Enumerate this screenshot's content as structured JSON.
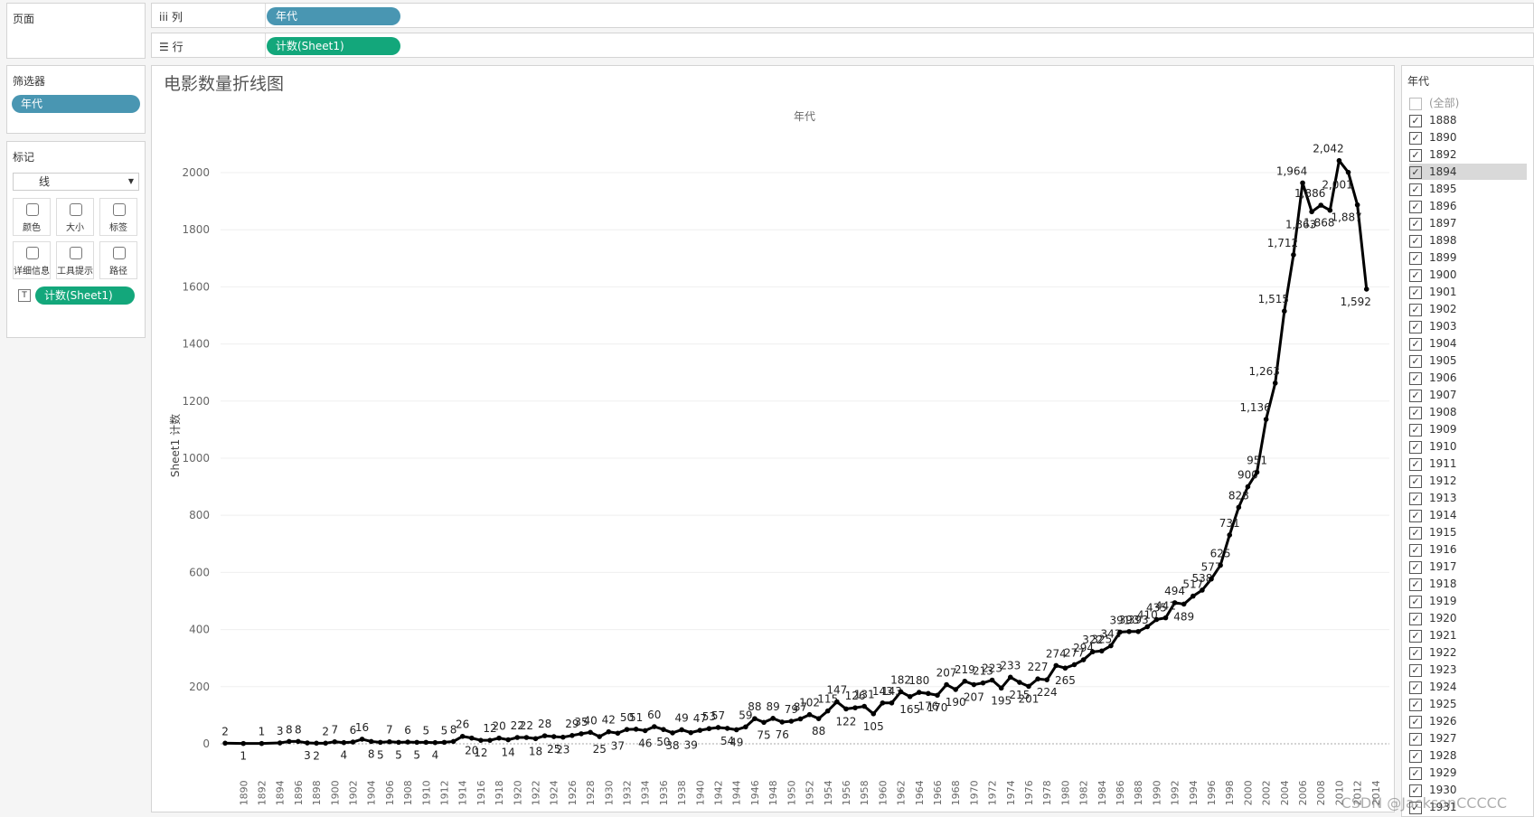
{
  "shelves": {
    "columns": {
      "label": "列",
      "pill": "年代"
    },
    "rows": {
      "label": "行",
      "pill": "计数(Sheet1)"
    }
  },
  "pages_panel": {
    "title": "页面"
  },
  "filters_panel": {
    "title": "筛选器",
    "pill": "年代"
  },
  "marks_panel": {
    "title": "标记",
    "mark_type": "线",
    "buttons": [
      "颜色",
      "大小",
      "标签",
      "详细信息",
      "工具提示",
      "路径"
    ],
    "pill": "计数(Sheet1)"
  },
  "filter_list": {
    "title": "年代",
    "all": "(全部)",
    "items": [
      "1888",
      "1890",
      "1892",
      "1894",
      "1895",
      "1896",
      "1897",
      "1898",
      "1899",
      "1900",
      "1901",
      "1902",
      "1903",
      "1904",
      "1905",
      "1906",
      "1907",
      "1908",
      "1909",
      "1910",
      "1911",
      "1912",
      "1913",
      "1914",
      "1915",
      "1916",
      "1917",
      "1918",
      "1919",
      "1920",
      "1921",
      "1922",
      "1923",
      "1924",
      "1925",
      "1926",
      "1927",
      "1928",
      "1929",
      "1930",
      "1931"
    ]
  },
  "watermark": "CSDN @JacksonCCCCC",
  "chart_data": {
    "type": "line",
    "title": "电影数量折线图",
    "x_header": "年代",
    "y_label": "Sheet1 计数",
    "color": "#000000",
    "grid": true,
    "x": [
      1888,
      1890,
      1892,
      1894,
      1895,
      1896,
      1897,
      1898,
      1899,
      1900,
      1901,
      1902,
      1903,
      1904,
      1905,
      1906,
      1907,
      1908,
      1909,
      1910,
      1911,
      1912,
      1913,
      1914,
      1915,
      1916,
      1917,
      1918,
      1919,
      1920,
      1921,
      1922,
      1923,
      1924,
      1925,
      1926,
      1927,
      1928,
      1929,
      1930,
      1931,
      1932,
      1933,
      1934,
      1935,
      1936,
      1937,
      1938,
      1939,
      1940,
      1941,
      1942,
      1943,
      1944,
      1945,
      1946,
      1947,
      1948,
      1949,
      1950,
      1951,
      1952,
      1953,
      1954,
      1955,
      1956,
      1957,
      1958,
      1959,
      1960,
      1961,
      1962,
      1963,
      1964,
      1965,
      1966,
      1967,
      1968,
      1969,
      1970,
      1971,
      1972,
      1973,
      1974,
      1975,
      1976,
      1977,
      1978,
      1979,
      1980,
      1981,
      1982,
      1983,
      1984,
      1985,
      1986,
      1987,
      1988,
      1989,
      1990,
      1991,
      1992,
      1993,
      1994,
      1995,
      1996,
      1997,
      1998,
      1999,
      2000,
      2001,
      2002,
      2003,
      2004,
      2005,
      2006,
      2007,
      2008,
      2009,
      2010,
      2011,
      2012,
      2013
    ],
    "values": [
      2,
      1,
      1,
      3,
      8,
      8,
      3,
      2,
      2,
      7,
      4,
      6,
      16,
      8,
      5,
      7,
      5,
      6,
      5,
      5,
      4,
      5,
      8,
      26,
      20,
      12,
      12,
      20,
      14,
      22,
      22,
      18,
      28,
      25,
      23,
      29,
      35,
      40,
      25,
      42,
      37,
      50,
      51,
      46,
      60,
      50,
      38,
      49,
      39,
      47,
      53,
      57,
      54,
      49,
      59,
      88,
      75,
      89,
      76,
      79,
      87,
      102,
      88,
      115,
      147,
      122,
      126,
      131,
      105,
      143,
      143,
      182,
      165,
      180,
      176,
      170,
      207,
      190,
      219,
      207,
      213,
      223,
      195,
      233,
      215,
      201,
      227,
      224,
      274,
      265,
      277,
      294,
      322,
      325,
      343,
      391,
      393,
      393,
      410,
      435,
      441,
      494,
      489,
      517,
      538,
      577,
      625,
      731,
      828,
      900,
      951,
      1136,
      1263,
      1515,
      1712,
      1964,
      1863,
      1886,
      1868,
      2042,
      2001,
      1887,
      1592
    ],
    "value_labels": [
      "2",
      "1",
      "1",
      "3",
      "8",
      "8",
      "3",
      "2",
      "2",
      "7",
      "4",
      "6",
      "16",
      "8",
      "5",
      "7",
      "5",
      "6",
      "5",
      "5",
      "4",
      "5",
      "8",
      "26",
      "20",
      "12",
      "12",
      "20",
      "14",
      "22",
      "22",
      "18",
      "28",
      "25",
      "23",
      "29",
      "35",
      "40",
      "25",
      "42",
      "37",
      "50",
      "51",
      "46",
      "60",
      "50",
      "38",
      "49",
      "39",
      "47",
      "53",
      "57",
      "54",
      "49",
      "59",
      "88",
      "75",
      "89",
      "76",
      "79",
      "87",
      "102",
      "88",
      "115",
      "147",
      "122",
      "126",
      "131",
      "105",
      "143",
      "143",
      "182",
      "165",
      "180",
      "176",
      "170",
      "207",
      "190",
      "219",
      "207",
      "213",
      "223",
      "195",
      "233",
      "215",
      "201",
      "227",
      "224",
      "274",
      "265",
      "277",
      "294",
      "322",
      "325",
      "343",
      "391",
      "393",
      "393",
      "410",
      "435",
      "441",
      "494",
      "489",
      "517",
      "538",
      "577",
      "625",
      "731",
      "828",
      "900",
      "951",
      "1,136",
      "1,263",
      "1,515",
      "1,712",
      "1,964",
      "1,863",
      "1,886",
      "1,868",
      "2,042",
      "2,001",
      "1,887",
      "1,592"
    ],
    "xlim": [
      1887.5,
      2015.5
    ],
    "xticks": [
      1890,
      1892,
      1894,
      1896,
      1898,
      1900,
      1902,
      1904,
      1906,
      1908,
      1910,
      1912,
      1914,
      1916,
      1918,
      1920,
      1922,
      1924,
      1926,
      1928,
      1930,
      1932,
      1934,
      1936,
      1938,
      1940,
      1942,
      1944,
      1946,
      1948,
      1950,
      1952,
      1954,
      1956,
      1958,
      1960,
      1962,
      1964,
      1966,
      1968,
      1970,
      1972,
      1974,
      1976,
      1978,
      1980,
      1982,
      1984,
      1986,
      1988,
      1990,
      1992,
      1994,
      1996,
      1998,
      2000,
      2002,
      2004,
      2006,
      2008,
      2010,
      2012,
      2014
    ],
    "ylim": [
      -90,
      2150
    ],
    "yticks": [
      0,
      200,
      400,
      600,
      800,
      1000,
      1200,
      1400,
      1600,
      1800,
      2000
    ]
  }
}
